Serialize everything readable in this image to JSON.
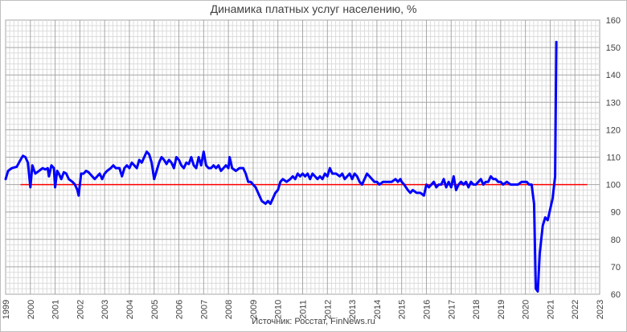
{
  "chart_data": {
    "type": "line",
    "title": "Динамика платных услуг населению, %",
    "source": "Источник: Росстат, FinNews.ru",
    "xlim": [
      1999,
      2023
    ],
    "ylim": [
      60,
      160
    ],
    "x_ticks": [
      "1999",
      "2000",
      "2001",
      "2002",
      "2003",
      "2004",
      "2005",
      "2006",
      "2007",
      "2008",
      "2009",
      "2010",
      "2011",
      "2012",
      "2013",
      "2014",
      "2015",
      "2016",
      "2017",
      "2018",
      "2019",
      "2020",
      "2021",
      "2022",
      "2023"
    ],
    "y_ticks": [
      "60",
      "70",
      "80",
      "90",
      "100",
      "110",
      "120",
      "130",
      "140",
      "150",
      "160"
    ],
    "y_tick_values": [
      60,
      70,
      80,
      90,
      100,
      110,
      120,
      130,
      140,
      150,
      160
    ],
    "grid": true,
    "reference_line": {
      "value": 100,
      "x_from": 1999.6,
      "x_to": 2022.5,
      "color": "#ff0000"
    },
    "series": [
      {
        "color": "#0000ff",
        "points": [
          [
            1999.0,
            102
          ],
          [
            1999.1,
            105
          ],
          [
            1999.25,
            106
          ],
          [
            1999.45,
            106.5
          ],
          [
            1999.6,
            109
          ],
          [
            1999.7,
            110.5
          ],
          [
            1999.8,
            110
          ],
          [
            1999.9,
            108
          ],
          [
            2000.0,
            99
          ],
          [
            2000.08,
            107
          ],
          [
            2000.2,
            104
          ],
          [
            2000.35,
            105
          ],
          [
            2000.5,
            106
          ],
          [
            2000.6,
            105.5
          ],
          [
            2000.7,
            106
          ],
          [
            2000.75,
            103
          ],
          [
            2000.85,
            107
          ],
          [
            2000.95,
            106
          ],
          [
            2001.0,
            99
          ],
          [
            2001.08,
            105
          ],
          [
            2001.15,
            104
          ],
          [
            2001.25,
            102
          ],
          [
            2001.35,
            104.5
          ],
          [
            2001.45,
            104
          ],
          [
            2001.55,
            102
          ],
          [
            2001.7,
            101
          ],
          [
            2001.8,
            100
          ],
          [
            2001.9,
            98
          ],
          [
            2001.95,
            96
          ],
          [
            2002.05,
            104
          ],
          [
            2002.15,
            104
          ],
          [
            2002.25,
            105
          ],
          [
            2002.35,
            104.5
          ],
          [
            2002.5,
            103
          ],
          [
            2002.6,
            102
          ],
          [
            2002.7,
            103
          ],
          [
            2002.8,
            104
          ],
          [
            2002.9,
            102
          ],
          [
            2003.0,
            104
          ],
          [
            2003.1,
            105
          ],
          [
            2003.25,
            106
          ],
          [
            2003.35,
            107
          ],
          [
            2003.45,
            106
          ],
          [
            2003.6,
            106
          ],
          [
            2003.7,
            103
          ],
          [
            2003.8,
            106
          ],
          [
            2003.9,
            107
          ],
          [
            2004.0,
            106
          ],
          [
            2004.1,
            108
          ],
          [
            2004.2,
            107
          ],
          [
            2004.3,
            106
          ],
          [
            2004.4,
            109
          ],
          [
            2004.5,
            108
          ],
          [
            2004.6,
            110
          ],
          [
            2004.7,
            112
          ],
          [
            2004.8,
            111
          ],
          [
            2004.9,
            108
          ],
          [
            2005.0,
            102
          ],
          [
            2005.1,
            105
          ],
          [
            2005.2,
            108
          ],
          [
            2005.3,
            110
          ],
          [
            2005.4,
            109
          ],
          [
            2005.5,
            107.5
          ],
          [
            2005.6,
            109
          ],
          [
            2005.7,
            108
          ],
          [
            2005.8,
            106
          ],
          [
            2005.9,
            110
          ],
          [
            2006.0,
            109
          ],
          [
            2006.1,
            107
          ],
          [
            2006.2,
            106
          ],
          [
            2006.3,
            108
          ],
          [
            2006.4,
            107.5
          ],
          [
            2006.5,
            110
          ],
          [
            2006.6,
            107
          ],
          [
            2006.7,
            106
          ],
          [
            2006.8,
            110
          ],
          [
            2006.9,
            107
          ],
          [
            2007.0,
            112
          ],
          [
            2007.1,
            107
          ],
          [
            2007.2,
            106
          ],
          [
            2007.3,
            106
          ],
          [
            2007.4,
            107
          ],
          [
            2007.5,
            106
          ],
          [
            2007.6,
            107
          ],
          [
            2007.7,
            105
          ],
          [
            2007.8,
            106
          ],
          [
            2007.9,
            107
          ],
          [
            2008.0,
            106
          ],
          [
            2008.05,
            110
          ],
          [
            2008.15,
            106
          ],
          [
            2008.3,
            105
          ],
          [
            2008.45,
            106
          ],
          [
            2008.6,
            106
          ],
          [
            2008.7,
            104
          ],
          [
            2008.8,
            101
          ],
          [
            2008.9,
            101
          ],
          [
            2009.0,
            100
          ],
          [
            2009.1,
            99
          ],
          [
            2009.25,
            96
          ],
          [
            2009.35,
            94
          ],
          [
            2009.5,
            93
          ],
          [
            2009.6,
            94
          ],
          [
            2009.7,
            93
          ],
          [
            2009.8,
            95
          ],
          [
            2009.9,
            97
          ],
          [
            2010.0,
            98
          ],
          [
            2010.1,
            101
          ],
          [
            2010.2,
            102
          ],
          [
            2010.35,
            101
          ],
          [
            2010.5,
            102
          ],
          [
            2010.6,
            103
          ],
          [
            2010.7,
            102
          ],
          [
            2010.8,
            104
          ],
          [
            2010.9,
            103
          ],
          [
            2011.0,
            104
          ],
          [
            2011.1,
            103
          ],
          [
            2011.2,
            104
          ],
          [
            2011.3,
            102
          ],
          [
            2011.4,
            104
          ],
          [
            2011.5,
            103
          ],
          [
            2011.6,
            102
          ],
          [
            2011.7,
            103
          ],
          [
            2011.8,
            102
          ],
          [
            2011.9,
            104
          ],
          [
            2012.0,
            103
          ],
          [
            2012.1,
            106
          ],
          [
            2012.2,
            104
          ],
          [
            2012.35,
            104
          ],
          [
            2012.5,
            103
          ],
          [
            2012.6,
            104
          ],
          [
            2012.7,
            102
          ],
          [
            2012.8,
            103
          ],
          [
            2012.9,
            104
          ],
          [
            2013.0,
            102
          ],
          [
            2013.1,
            104
          ],
          [
            2013.2,
            103
          ],
          [
            2013.3,
            101
          ],
          [
            2013.4,
            100
          ],
          [
            2013.5,
            102
          ],
          [
            2013.6,
            104
          ],
          [
            2013.7,
            103
          ],
          [
            2013.8,
            102
          ],
          [
            2013.9,
            101
          ],
          [
            2014.0,
            101
          ],
          [
            2014.1,
            100
          ],
          [
            2014.25,
            101
          ],
          [
            2014.4,
            101
          ],
          [
            2014.6,
            101
          ],
          [
            2014.75,
            102
          ],
          [
            2014.85,
            101
          ],
          [
            2014.95,
            102
          ],
          [
            2015.0,
            101
          ],
          [
            2015.1,
            100
          ],
          [
            2015.25,
            98
          ],
          [
            2015.35,
            97
          ],
          [
            2015.45,
            98
          ],
          [
            2015.6,
            97
          ],
          [
            2015.75,
            97
          ],
          [
            2015.9,
            96
          ],
          [
            2016.0,
            100
          ],
          [
            2016.1,
            99
          ],
          [
            2016.2,
            100
          ],
          [
            2016.3,
            101
          ],
          [
            2016.4,
            99
          ],
          [
            2016.5,
            100
          ],
          [
            2016.6,
            100
          ],
          [
            2016.7,
            102
          ],
          [
            2016.8,
            99
          ],
          [
            2016.9,
            101
          ],
          [
            2017.0,
            99
          ],
          [
            2017.1,
            103
          ],
          [
            2017.2,
            98
          ],
          [
            2017.3,
            100
          ],
          [
            2017.4,
            101
          ],
          [
            2017.5,
            100
          ],
          [
            2017.6,
            101
          ],
          [
            2017.7,
            99
          ],
          [
            2017.8,
            101
          ],
          [
            2017.9,
            100
          ],
          [
            2018.0,
            100
          ],
          [
            2018.1,
            101
          ],
          [
            2018.2,
            102
          ],
          [
            2018.3,
            100
          ],
          [
            2018.4,
            101
          ],
          [
            2018.5,
            101
          ],
          [
            2018.6,
            103
          ],
          [
            2018.7,
            102
          ],
          [
            2018.8,
            102
          ],
          [
            2018.9,
            101
          ],
          [
            2019.0,
            101
          ],
          [
            2019.1,
            100
          ],
          [
            2019.25,
            101
          ],
          [
            2019.4,
            100
          ],
          [
            2019.55,
            100
          ],
          [
            2019.7,
            100
          ],
          [
            2019.85,
            101
          ],
          [
            2019.95,
            101
          ],
          [
            2020.05,
            101
          ],
          [
            2020.15,
            100
          ],
          [
            2020.25,
            100
          ],
          [
            2020.35,
            93
          ],
          [
            2020.42,
            62
          ],
          [
            2020.5,
            61
          ],
          [
            2020.58,
            75
          ],
          [
            2020.7,
            85
          ],
          [
            2020.8,
            88
          ],
          [
            2020.9,
            87
          ],
          [
            2021.0,
            91
          ],
          [
            2021.1,
            95
          ],
          [
            2021.2,
            103
          ],
          [
            2021.25,
            152
          ]
        ]
      }
    ]
  }
}
